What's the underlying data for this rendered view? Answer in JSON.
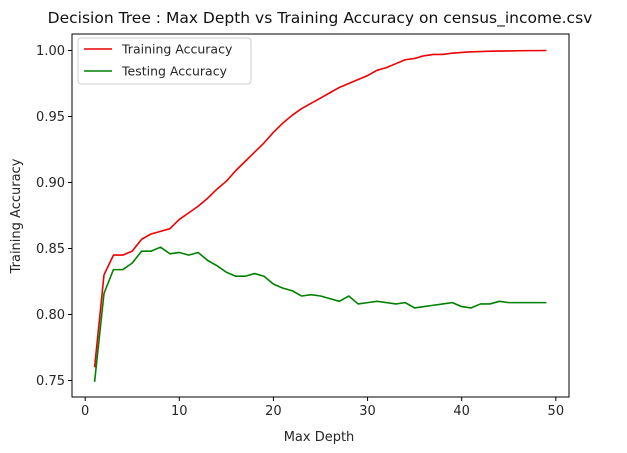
{
  "chart_data": {
    "type": "line",
    "title": "Decision Tree : Max Depth vs Training Accuracy on census_income.csv",
    "xlabel": "Max Depth",
    "ylabel": "Training Accuracy",
    "xlim": [
      -1.4,
      51.4
    ],
    "ylim": [
      0.7375,
      1.0125
    ],
    "xticks": [
      0,
      10,
      20,
      30,
      40,
      50
    ],
    "yticks": [
      0.75,
      0.8,
      0.85,
      0.9,
      0.95,
      1.0
    ],
    "ytick_labels": [
      "0.75",
      "0.80",
      "0.85",
      "0.90",
      "0.95",
      "1.00"
    ],
    "grid": false,
    "legend_position": "upper-left",
    "x": [
      1,
      2,
      3,
      4,
      5,
      6,
      7,
      8,
      9,
      10,
      11,
      12,
      13,
      14,
      15,
      16,
      17,
      18,
      19,
      20,
      21,
      22,
      23,
      24,
      25,
      26,
      27,
      28,
      29,
      30,
      31,
      32,
      33,
      34,
      35,
      36,
      37,
      38,
      39,
      40,
      41,
      42,
      43,
      44,
      45,
      46,
      47,
      48,
      49
    ],
    "series": [
      {
        "name": "Training Accuracy",
        "color": "#ee0000",
        "values": [
          0.76,
          0.83,
          0.845,
          0.845,
          0.848,
          0.857,
          0.861,
          0.863,
          0.865,
          0.872,
          0.877,
          0.882,
          0.888,
          0.895,
          0.901,
          0.909,
          0.916,
          0.923,
          0.93,
          0.938,
          0.945,
          0.951,
          0.956,
          0.96,
          0.964,
          0.968,
          0.972,
          0.975,
          0.978,
          0.981,
          0.985,
          0.987,
          0.99,
          0.993,
          0.994,
          0.996,
          0.997,
          0.997,
          0.998,
          0.9985,
          0.999,
          0.9992,
          0.9995,
          0.9996,
          0.9997,
          0.9998,
          0.9999,
          0.9999,
          1.0
        ]
      },
      {
        "name": "Testing Accuracy",
        "color": "#008000",
        "values": [
          0.749,
          0.816,
          0.834,
          0.834,
          0.839,
          0.848,
          0.848,
          0.851,
          0.846,
          0.847,
          0.845,
          0.847,
          0.841,
          0.837,
          0.832,
          0.829,
          0.829,
          0.831,
          0.829,
          0.823,
          0.82,
          0.818,
          0.814,
          0.815,
          0.814,
          0.812,
          0.81,
          0.814,
          0.808,
          0.809,
          0.81,
          0.809,
          0.808,
          0.809,
          0.805,
          0.806,
          0.807,
          0.808,
          0.809,
          0.806,
          0.805,
          0.808,
          0.808,
          0.81,
          0.809,
          0.809,
          0.809,
          0.809,
          0.809
        ]
      }
    ]
  }
}
